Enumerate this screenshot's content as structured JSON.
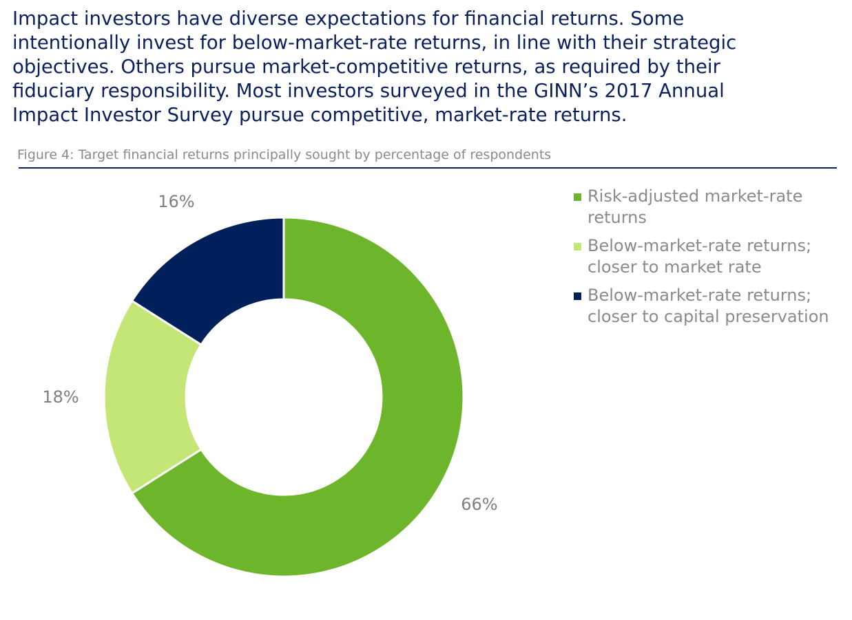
{
  "intro_lines": [
    "Impact investors have diverse expectations for financial returns. Some",
    "intentionally invest for below-market-rate returns, in line with their strategic",
    "objectives. Others pursue market-competitive returns, as required by their",
    "fiduciary responsibility. Most investors surveyed in the GINN’s 2017 Annual",
    "Impact Investor Survey pursue competitive, market-rate returns."
  ],
  "chart_data": {
    "type": "pie",
    "variant": "donut",
    "title": "Figure 4: Target financial returns principally sought by percentage of respondents",
    "legend_position": "right",
    "series": [
      {
        "name": "Risk-adjusted market-rate returns",
        "legend_lines": [
          "Risk-adjusted market-rate",
          "returns"
        ],
        "value": 66,
        "label": "66%",
        "color": "#6db52a"
      },
      {
        "name": "Below-market-rate returns; closer to market rate",
        "legend_lines": [
          "Below-market-rate returns;",
          "closer to market rate"
        ],
        "value": 18,
        "label": "18%",
        "color": "#c3e677"
      },
      {
        "name": "Below-market-rate returns; closer to capital preservation",
        "legend_lines": [
          "Below-market-rate returns;",
          "closer to capital preservation"
        ],
        "value": 16,
        "label": "16%",
        "color": "#00205b"
      }
    ]
  },
  "colors": {
    "intro_text": "#0b1f5c",
    "caption_text": "#8a8a8a",
    "rule": "#0b1f5c",
    "data_label": "#7f7f7f"
  }
}
